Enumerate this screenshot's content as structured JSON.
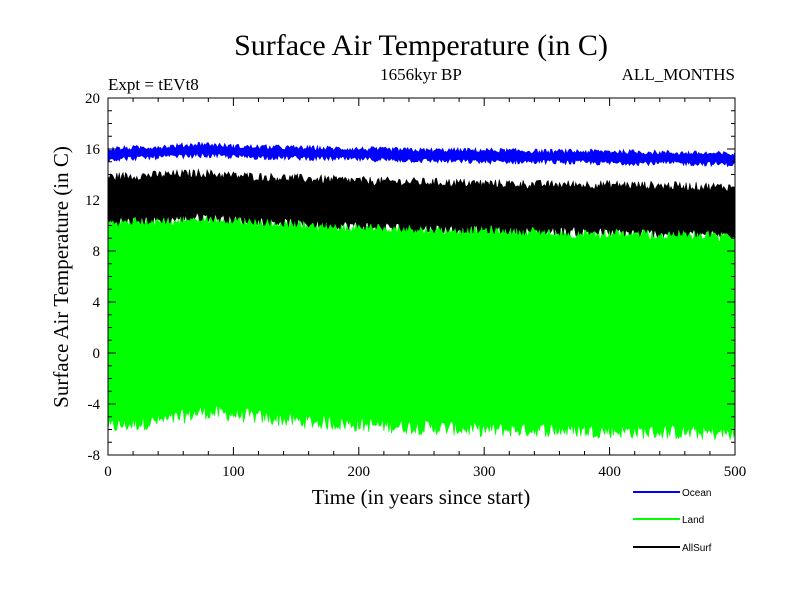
{
  "chart_data": {
    "type": "line",
    "title": "Surface Air Temperature (in C)",
    "subtitle_left": "Expt = tEVt8",
    "subtitle_center": "1656kyr BP",
    "subtitle_right": "ALL_MONTHS",
    "xlabel": "Time (in years since start)",
    "ylabel": "Surface Air Temperature (in C)",
    "xlim": [
      0,
      500
    ],
    "ylim": [
      -8,
      20
    ],
    "xticks": [
      0,
      100,
      200,
      300,
      400,
      500
    ],
    "yticks": [
      -8,
      -4,
      0,
      4,
      8,
      12,
      16,
      20
    ],
    "grid": false,
    "legend_position": "bottom-right",
    "series": [
      {
        "name": "Ocean",
        "color": "#0000ff",
        "x": [
          0,
          50,
          75,
          100,
          150,
          200,
          250,
          300,
          350,
          400,
          450,
          500
        ],
        "upper": [
          16.0,
          16.2,
          16.4,
          16.2,
          16.1,
          16.0,
          15.9,
          15.9,
          15.8,
          15.8,
          15.7,
          15.6
        ],
        "lower": [
          15.2,
          15.4,
          15.5,
          15.4,
          15.3,
          15.2,
          15.1,
          15.0,
          15.0,
          14.9,
          14.9,
          14.8
        ]
      },
      {
        "name": "Land",
        "color": "#00ff00",
        "x": [
          0,
          50,
          75,
          100,
          150,
          200,
          250,
          300,
          350,
          400,
          450,
          500
        ],
        "upper": [
          10.3,
          10.5,
          10.7,
          10.5,
          10.2,
          10.0,
          9.8,
          9.7,
          9.6,
          9.5,
          9.4,
          9.3
        ],
        "lower": [
          -5.8,
          -5.2,
          -4.6,
          -4.8,
          -5.3,
          -5.6,
          -5.8,
          -6.0,
          -6.0,
          -6.1,
          -6.2,
          -6.3
        ]
      },
      {
        "name": "AllSurf",
        "color": "#000000",
        "x": [
          0,
          50,
          75,
          100,
          150,
          200,
          250,
          300,
          350,
          400,
          450,
          500
        ],
        "upper": [
          13.8,
          14.0,
          14.1,
          13.9,
          13.7,
          13.5,
          13.4,
          13.3,
          13.2,
          13.2,
          13.1,
          13.0
        ],
        "lower": [
          10.3,
          10.5,
          10.7,
          10.5,
          10.2,
          10.0,
          9.8,
          9.7,
          9.6,
          9.5,
          9.4,
          9.3
        ]
      }
    ]
  }
}
